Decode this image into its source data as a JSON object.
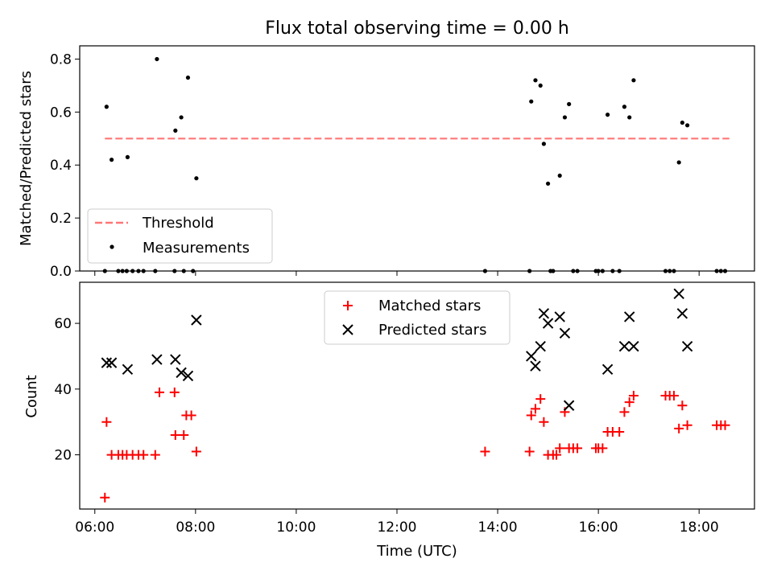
{
  "title": "Flux total observing time = 0.00 h",
  "chart_data": [
    {
      "type": "scatter",
      "ylabel": "Matched/Predicted stars",
      "xlabel": "",
      "xlim": [
        "05:42",
        "19:06"
      ],
      "ylim": [
        0,
        0.85
      ],
      "yticks": [
        0.0,
        0.2,
        0.4,
        0.6,
        0.8
      ],
      "ytick_labels": [
        "0.0",
        "0.2",
        "0.4",
        "0.6",
        "0.8"
      ],
      "grid": false,
      "legend": "lower-left",
      "threshold": {
        "name": "Threshold",
        "y": 0.5,
        "x": [
          "06:12",
          "18:36"
        ],
        "color": "#ff7777"
      },
      "series": [
        {
          "name": "Measurements",
          "color": "#000000",
          "marker": "dot",
          "points": [
            [
              "06:14",
              0.62
            ],
            [
              "06:20",
              0.42
            ],
            [
              "06:39",
              0.43
            ],
            [
              "07:14",
              0.8
            ],
            [
              "07:36",
              0.53
            ],
            [
              "07:43",
              0.58
            ],
            [
              "07:51",
              0.73
            ],
            [
              "08:01",
              0.35
            ],
            [
              "14:40",
              0.64
            ],
            [
              "14:45",
              0.72
            ],
            [
              "14:51",
              0.7
            ],
            [
              "14:55",
              0.48
            ],
            [
              "15:00",
              0.33
            ],
            [
              "15:14",
              0.36
            ],
            [
              "15:20",
              0.58
            ],
            [
              "15:25",
              0.63
            ],
            [
              "16:11",
              0.59
            ],
            [
              "16:31",
              0.62
            ],
            [
              "16:37",
              0.58
            ],
            [
              "16:42",
              0.72
            ],
            [
              "17:36",
              0.41
            ],
            [
              "17:40",
              0.56
            ],
            [
              "17:46",
              0.55
            ],
            [
              "06:12",
              0.0
            ],
            [
              "06:28",
              0.0
            ],
            [
              "06:33",
              0.0
            ],
            [
              "06:38",
              0.0
            ],
            [
              "06:45",
              0.0
            ],
            [
              "06:52",
              0.0
            ],
            [
              "06:58",
              0.0
            ],
            [
              "07:12",
              0.0
            ],
            [
              "07:35",
              0.0
            ],
            [
              "07:46",
              0.0
            ],
            [
              "07:57",
              0.0
            ],
            [
              "13:45",
              0.0
            ],
            [
              "14:38",
              0.0
            ],
            [
              "15:03",
              0.0
            ],
            [
              "15:06",
              0.0
            ],
            [
              "15:30",
              0.0
            ],
            [
              "15:35",
              0.0
            ],
            [
              "15:57",
              0.0
            ],
            [
              "16:00",
              0.0
            ],
            [
              "16:05",
              0.0
            ],
            [
              "16:17",
              0.0
            ],
            [
              "16:25",
              0.0
            ],
            [
              "17:20",
              0.0
            ],
            [
              "17:25",
              0.0
            ],
            [
              "17:30",
              0.0
            ],
            [
              "18:21",
              0.0
            ],
            [
              "18:26",
              0.0
            ],
            [
              "18:31",
              0.0
            ]
          ]
        }
      ]
    },
    {
      "type": "scatter",
      "ylabel": "Count",
      "xlabel": "Time (UTC)",
      "xlim": [
        "05:42",
        "19:06"
      ],
      "ylim": [
        3.5,
        72.5
      ],
      "yticks": [
        20,
        40,
        60
      ],
      "ytick_labels": [
        "20",
        "40",
        "60"
      ],
      "xticks": [
        "06:00",
        "08:00",
        "10:00",
        "12:00",
        "14:00",
        "16:00",
        "18:00"
      ],
      "grid": false,
      "legend": "top-center",
      "series": [
        {
          "name": "Matched stars",
          "color": "#ff0000",
          "marker": "plus",
          "points": [
            [
              "06:12",
              7
            ],
            [
              "06:14",
              30
            ],
            [
              "06:20",
              20
            ],
            [
              "06:28",
              20
            ],
            [
              "06:33",
              20
            ],
            [
              "06:38",
              20
            ],
            [
              "06:45",
              20
            ],
            [
              "06:52",
              20
            ],
            [
              "06:58",
              20
            ],
            [
              "07:12",
              20
            ],
            [
              "07:17",
              39
            ],
            [
              "07:35",
              39
            ],
            [
              "07:36",
              26
            ],
            [
              "07:46",
              26
            ],
            [
              "07:49",
              32
            ],
            [
              "07:55",
              32
            ],
            [
              "08:01",
              21
            ],
            [
              "13:45",
              21
            ],
            [
              "14:38",
              21
            ],
            [
              "14:40",
              32
            ],
            [
              "14:45",
              34
            ],
            [
              "14:51",
              37
            ],
            [
              "14:55",
              30
            ],
            [
              "15:00",
              20
            ],
            [
              "15:06",
              20
            ],
            [
              "15:10",
              20
            ],
            [
              "15:14",
              22
            ],
            [
              "15:20",
              33
            ],
            [
              "15:25",
              22
            ],
            [
              "15:30",
              22
            ],
            [
              "15:35",
              22
            ],
            [
              "15:57",
              22
            ],
            [
              "16:00",
              22
            ],
            [
              "16:05",
              22
            ],
            [
              "16:11",
              27
            ],
            [
              "16:17",
              27
            ],
            [
              "16:25",
              27
            ],
            [
              "16:31",
              33
            ],
            [
              "16:37",
              36
            ],
            [
              "16:42",
              38
            ],
            [
              "17:20",
              38
            ],
            [
              "17:25",
              38
            ],
            [
              "17:30",
              38
            ],
            [
              "17:36",
              28
            ],
            [
              "17:40",
              35
            ],
            [
              "17:46",
              29
            ],
            [
              "18:21",
              29
            ],
            [
              "18:26",
              29
            ],
            [
              "18:31",
              29
            ]
          ]
        },
        {
          "name": "Predicted stars",
          "color": "#000000",
          "marker": "x",
          "points": [
            [
              "06:14",
              48
            ],
            [
              "06:20",
              48
            ],
            [
              "06:39",
              46
            ],
            [
              "07:14",
              49
            ],
            [
              "07:36",
              49
            ],
            [
              "07:43",
              45
            ],
            [
              "07:51",
              44
            ],
            [
              "08:01",
              61
            ],
            [
              "14:40",
              50
            ],
            [
              "14:45",
              47
            ],
            [
              "14:51",
              53
            ],
            [
              "14:55",
              63
            ],
            [
              "15:00",
              60
            ],
            [
              "15:14",
              62
            ],
            [
              "15:20",
              57
            ],
            [
              "15:25",
              35
            ],
            [
              "16:11",
              46
            ],
            [
              "16:31",
              53
            ],
            [
              "16:37",
              62
            ],
            [
              "16:42",
              53
            ],
            [
              "17:36",
              69
            ],
            [
              "17:40",
              63
            ],
            [
              "17:46",
              53
            ]
          ]
        }
      ]
    }
  ]
}
